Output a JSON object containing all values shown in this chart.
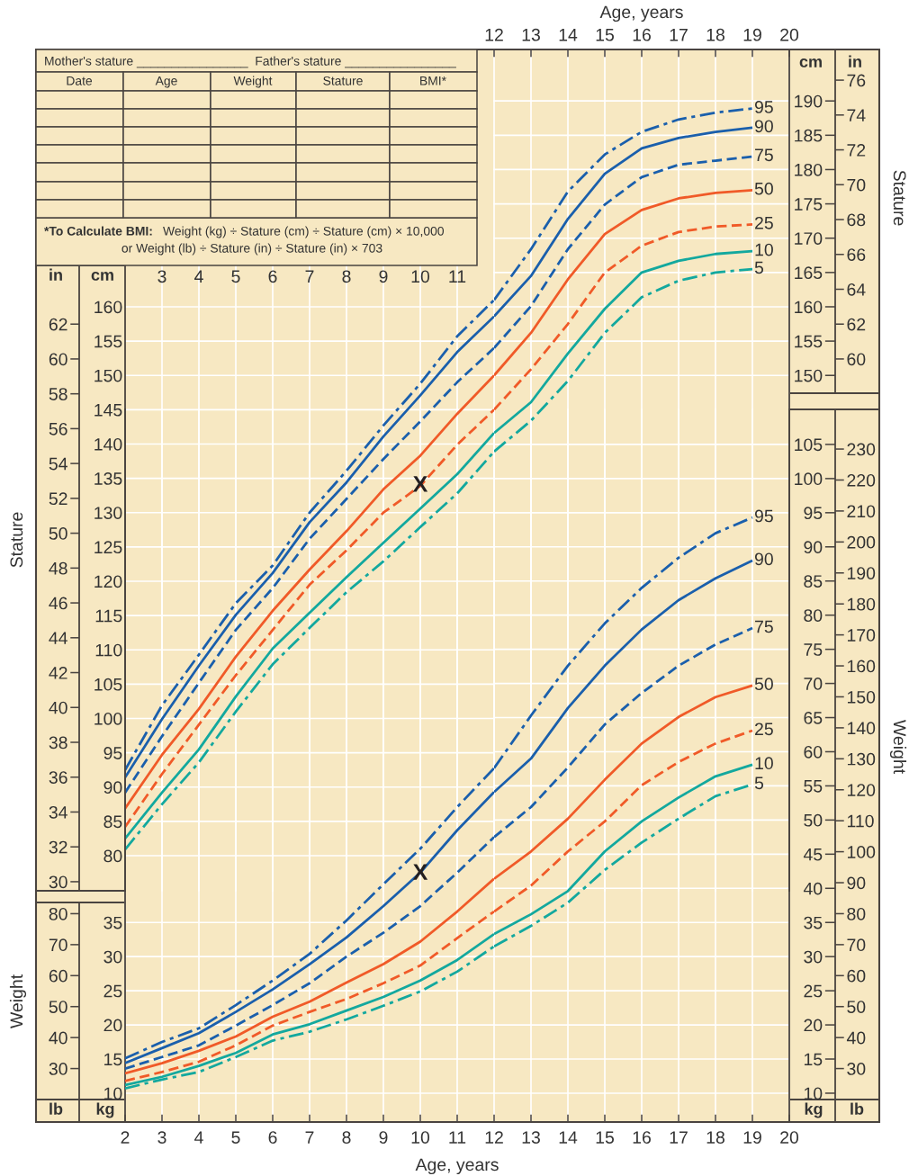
{
  "chart_data": [
    {
      "type": "line",
      "xlim": [
        2,
        12
      ],
      "xticks": [
        3,
        4,
        5,
        6,
        7,
        8,
        9,
        10,
        11
      ],
      "y2label": "Stature",
      "ylim": [
        74.89,
        197.5
      ],
      "yticks": [
        80,
        85,
        90,
        95,
        100,
        105,
        110,
        115,
        120,
        125,
        130,
        135,
        140,
        145,
        150,
        155,
        160
      ],
      "y2lim": [
        29.48,
        77.76
      ],
      "y2ticks": [
        30,
        32,
        34,
        36,
        38,
        40,
        42,
        44,
        46,
        48,
        50,
        52,
        54,
        56,
        58,
        60,
        62
      ],
      "grid": true,
      "x": [
        2,
        3,
        4,
        5,
        6,
        7,
        8,
        9,
        10,
        11,
        12
      ],
      "series": [
        {
          "color": "#1a5fac",
          "line_style": "dashdot",
          "values": [
            92.5,
            101.9,
            109.3,
            116.8,
            122.3,
            130.0,
            136.1,
            142.7,
            148.8,
            155.7,
            161.0
          ]
        },
        {
          "color": "#1a5fac",
          "line_style": "solid",
          "values": [
            91.4,
            99.9,
            107.7,
            115.1,
            121.2,
            128.6,
            134.4,
            141.1,
            147.1,
            153.4,
            158.6
          ]
        },
        {
          "color": "#1a5fac",
          "line_style": "dashed",
          "values": [
            89.2,
            97.4,
            105.2,
            112.9,
            119.0,
            126.2,
            132.0,
            137.8,
            143.3,
            149.0,
            154.0
          ]
        },
        {
          "color": "#f05a28",
          "line_style": "solid",
          "values": [
            86.9,
            94.7,
            101.4,
            109.0,
            115.7,
            121.7,
            127.3,
            133.4,
            138.3,
            144.4,
            150.0
          ]
        },
        {
          "color": "#f05a28",
          "line_style": "dashed",
          "values": [
            84.2,
            91.9,
            99.1,
            106.3,
            112.9,
            119.5,
            124.5,
            130.0,
            133.9,
            139.9,
            145.0
          ]
        },
        {
          "color": "#13a89e",
          "line_style": "solid",
          "values": [
            82.5,
            89.2,
            95.5,
            103.2,
            110.2,
            115.4,
            120.6,
            125.6,
            130.6,
            135.6,
            141.6
          ]
        },
        {
          "color": "#13a89e",
          "line_style": "dashdot",
          "values": [
            80.9,
            87.5,
            93.6,
            101.0,
            107.9,
            113.2,
            118.4,
            122.9,
            127.9,
            132.8,
            138.9
          ]
        }
      ],
      "annotations": [
        {
          "text": "X",
          "x": 10,
          "y": 133.9
        },
        "in",
        "cm",
        "Mother's stature ________________  Father's stature ________________",
        "Date",
        "Age",
        "Weight",
        "Stature",
        "BMI*",
        "*To Calculate BMI:",
        "Weight (kg) ÷ Stature (cm) ÷ Stature (cm) × 10,000",
        "or Weight (lb) ÷ Stature (in) ÷ Stature (in) × 703"
      ]
    },
    {
      "type": "line",
      "xlim": [
        12,
        20
      ],
      "xticks": [
        12,
        13,
        14,
        15,
        16,
        17,
        18,
        19,
        20
      ],
      "xlabel": "Age, years",
      "y2label": "Stature",
      "ylim": [
        74.89,
        197.5
      ],
      "yticks": [
        150,
        155,
        160,
        165,
        170,
        175,
        180,
        185,
        190
      ],
      "y2lim": [
        29.48,
        77.76
      ],
      "y2ticks": [
        60,
        62,
        64,
        66,
        68,
        70,
        72,
        74,
        76
      ],
      "grid": true,
      "x": [
        12,
        13,
        14,
        15,
        16,
        17,
        18,
        19
      ],
      "series": [
        {
          "name": "95",
          "color": "#1a5fac",
          "line_style": "dashdot",
          "values": [
            161.0,
            168.4,
            176.8,
            182.2,
            185.5,
            187.3,
            188.3,
            188.9
          ]
        },
        {
          "name": "90",
          "color": "#1a5fac",
          "line_style": "solid",
          "values": [
            158.6,
            164.5,
            172.8,
            179.4,
            183.1,
            184.6,
            185.5,
            186.1
          ]
        },
        {
          "name": "75",
          "color": "#1a5fac",
          "line_style": "dashed",
          "values": [
            154.0,
            160.1,
            168.4,
            174.9,
            178.9,
            180.7,
            181.3,
            181.9
          ]
        },
        {
          "name": "50",
          "color": "#f05a28",
          "line_style": "solid",
          "values": [
            150.0,
            156.2,
            164.0,
            170.6,
            174.1,
            175.8,
            176.6,
            177.0
          ]
        },
        {
          "name": "25",
          "color": "#f05a28",
          "line_style": "dashed",
          "values": [
            145.0,
            150.9,
            157.5,
            165.0,
            168.9,
            170.9,
            171.7,
            172.0
          ]
        },
        {
          "name": "10",
          "color": "#13a89e",
          "line_style": "solid",
          "values": [
            141.6,
            146.1,
            153.2,
            159.7,
            165.0,
            166.7,
            167.7,
            168.1
          ]
        },
        {
          "name": "5",
          "color": "#13a89e",
          "line_style": "dashdot",
          "values": [
            138.9,
            143.4,
            149.2,
            156.2,
            161.4,
            163.8,
            165.0,
            165.5
          ]
        }
      ],
      "annotations": [
        "cm",
        "in"
      ]
    },
    {
      "type": "line",
      "xlim": [
        2,
        12
      ],
      "xticks": [
        2,
        3,
        4,
        5,
        6,
        7,
        8,
        9,
        10,
        11
      ],
      "xlabel": "Age, years",
      "y2label": "Weight",
      "ylim": [
        5.78,
        110.13
      ],
      "yticks": [
        10,
        15,
        20,
        25,
        30,
        35
      ],
      "y2lim": [
        12.74,
        242.8
      ],
      "y2ticks": [
        30,
        40,
        50,
        60,
        70,
        80
      ],
      "grid": true,
      "x": [
        2,
        3,
        4,
        5,
        6,
        7,
        8,
        9,
        10,
        11,
        12
      ],
      "series": [
        {
          "color": "#1a5fac",
          "line_style": "dashdot",
          "values": [
            15.1,
            17.5,
            19.5,
            22.9,
            26.5,
            30.4,
            35.3,
            40.6,
            45.8,
            51.9,
            57.6
          ]
        },
        {
          "color": "#1a5fac",
          "line_style": "solid",
          "values": [
            14.4,
            16.6,
            18.8,
            21.9,
            25.2,
            28.9,
            32.8,
            37.4,
            42.3,
            48.5,
            54.1
          ]
        },
        {
          "color": "#1a5fac",
          "line_style": "dashed",
          "values": [
            13.6,
            15.3,
            17.0,
            19.9,
            22.9,
            26.1,
            30.0,
            33.5,
            37.4,
            42.3,
            47.5
          ]
        },
        {
          "color": "#f05a28",
          "line_style": "solid",
          "values": [
            12.9,
            14.4,
            16.2,
            18.3,
            21.2,
            23.4,
            26.2,
            28.9,
            32.2,
            36.6,
            41.4
          ]
        },
        {
          "color": "#f05a28",
          "line_style": "dashed",
          "values": [
            11.8,
            13.1,
            14.6,
            17.0,
            19.9,
            21.9,
            23.8,
            26.1,
            28.7,
            32.7,
            36.6
          ]
        },
        {
          "color": "#13a89e",
          "line_style": "solid",
          "values": [
            11.2,
            12.4,
            14.0,
            15.9,
            18.6,
            20.1,
            22.1,
            24.1,
            26.5,
            29.5,
            33.3
          ]
        },
        {
          "color": "#13a89e",
          "line_style": "dashdot",
          "values": [
            10.7,
            12.0,
            13.1,
            15.3,
            17.7,
            19.0,
            20.8,
            22.8,
            24.9,
            27.8,
            31.5
          ]
        }
      ],
      "annotations": [
        {
          "text": "X",
          "x": 10,
          "y": 42.1
        },
        "lb",
        "kg"
      ]
    },
    {
      "type": "line",
      "xlim": [
        12,
        20
      ],
      "xticks": [
        12,
        13,
        14,
        15,
        16,
        17,
        18,
        19,
        20
      ],
      "y2label": "Weight",
      "ylim": [
        5.78,
        110.13
      ],
      "yticks": [
        10,
        15,
        20,
        25,
        30,
        35,
        40,
        45,
        50,
        55,
        60,
        65,
        70,
        75,
        80,
        85,
        90,
        95,
        100,
        105
      ],
      "y2lim": [
        12.74,
        242.8
      ],
      "y2ticks": [
        30,
        40,
        50,
        60,
        70,
        80,
        90,
        100,
        110,
        120,
        130,
        140,
        150,
        160,
        170,
        180,
        190,
        200,
        210,
        220,
        230
      ],
      "grid": true,
      "x": [
        12,
        13,
        14,
        15,
        16,
        17,
        18,
        19
      ],
      "series": [
        {
          "name": "95",
          "color": "#1a5fac",
          "line_style": "dashdot",
          "values": [
            57.6,
            65.3,
            72.6,
            78.8,
            84.0,
            88.4,
            92.0,
            94.3
          ]
        },
        {
          "name": "90",
          "color": "#1a5fac",
          "line_style": "solid",
          "values": [
            54.1,
            59.0,
            66.4,
            72.6,
            77.9,
            82.2,
            85.4,
            88.0
          ]
        },
        {
          "name": "75",
          "color": "#1a5fac",
          "line_style": "dashed",
          "values": [
            47.5,
            51.9,
            57.7,
            64.0,
            68.6,
            72.6,
            75.7,
            78.1
          ]
        },
        {
          "name": "50",
          "color": "#f05a28",
          "line_style": "solid",
          "values": [
            41.4,
            45.4,
            50.2,
            55.9,
            61.2,
            65.1,
            68.0,
            69.7
          ]
        },
        {
          "name": "25",
          "color": "#f05a28",
          "line_style": "dashed",
          "values": [
            36.6,
            40.4,
            45.4,
            49.8,
            55.1,
            58.5,
            61.2,
            63.1
          ]
        },
        {
          "name": "10",
          "color": "#13a89e",
          "line_style": "solid",
          "values": [
            33.3,
            36.2,
            39.6,
            45.4,
            49.8,
            53.3,
            56.4,
            58.1
          ]
        },
        {
          "name": "5",
          "color": "#13a89e",
          "line_style": "dashdot",
          "values": [
            31.5,
            34.5,
            37.9,
            42.7,
            46.7,
            50.2,
            53.5,
            55.2
          ]
        }
      ],
      "annotations": [
        "kg",
        "lb"
      ]
    }
  ]
}
